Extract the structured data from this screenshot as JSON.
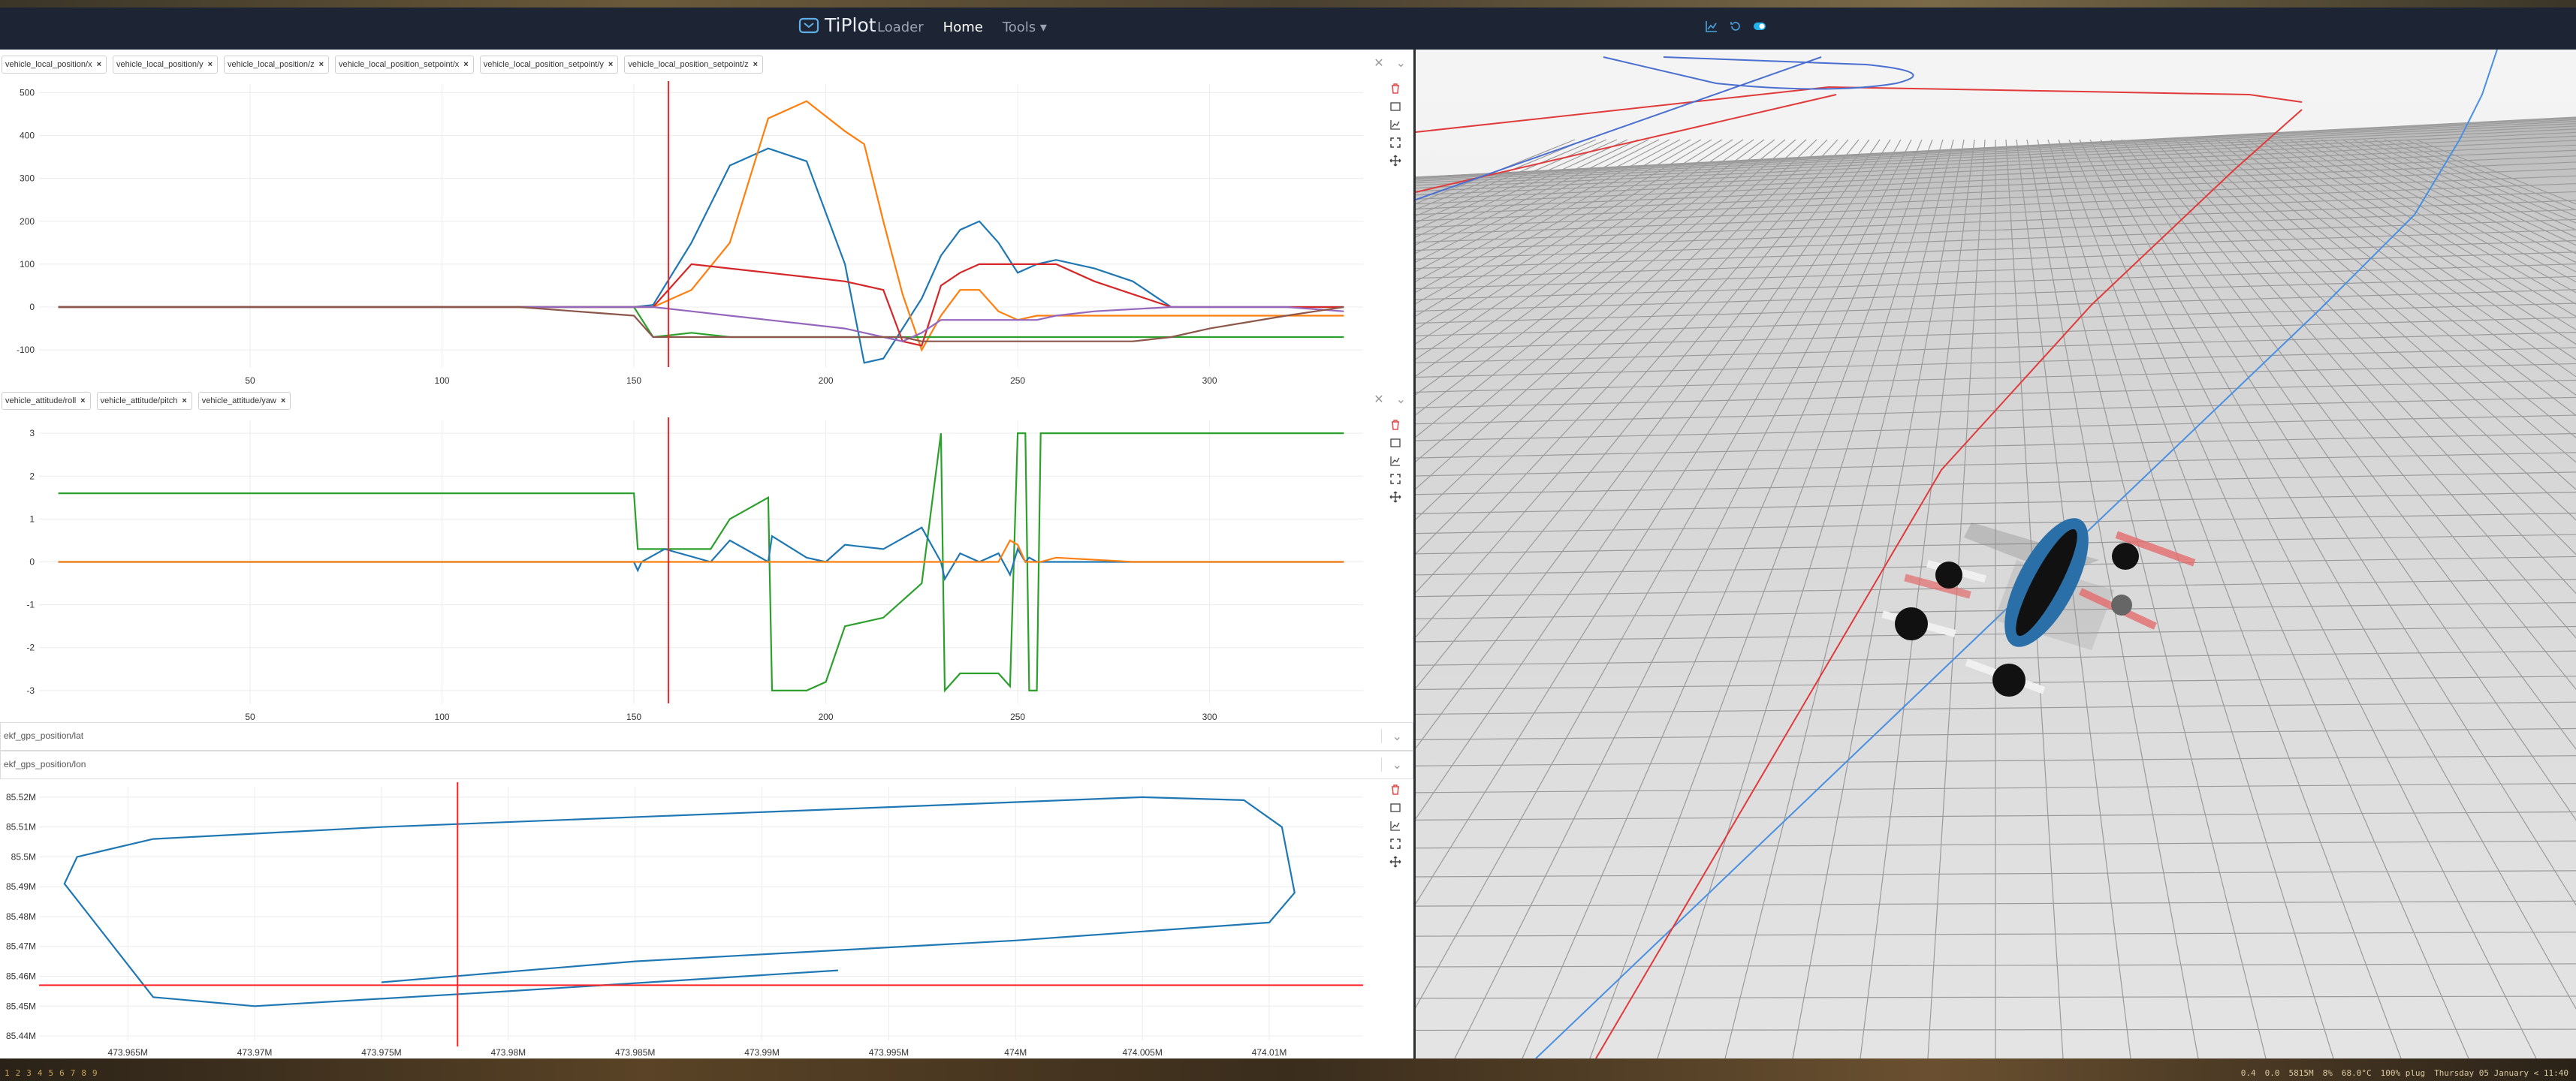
{
  "navbar": {
    "brand": "TiPlot",
    "links": [
      {
        "label": "Loader",
        "active": false
      },
      {
        "label": "Home",
        "active": true
      },
      {
        "label": "Tools ▾",
        "active": false
      }
    ]
  },
  "plots": [
    {
      "tags": [
        "vehicle_local_position/x",
        "vehicle_local_position/y",
        "vehicle_local_position/z",
        "vehicle_local_position_setpoint/x",
        "vehicle_local_position_setpoint/y",
        "vehicle_local_position_setpoint/z"
      ],
      "y_ticks": [
        "500",
        "400",
        "300",
        "200",
        "100",
        "0",
        "-100"
      ],
      "x_ticks": [
        "50",
        "100",
        "150",
        "200",
        "250",
        "300"
      ]
    },
    {
      "tags": [
        "vehicle_attitude/roll",
        "vehicle_attitude/pitch",
        "vehicle_attitude/yaw"
      ],
      "y_ticks": [
        "3",
        "2",
        "1",
        "0",
        "-1",
        "-2",
        "-3"
      ],
      "x_ticks": [
        "50",
        "100",
        "150",
        "200",
        "250",
        "300"
      ]
    },
    {
      "select_x": "ekf_gps_position/lat",
      "select_y": "ekf_gps_position/lon",
      "y_ticks": [
        "85.52M",
        "85.51M",
        "85.5M",
        "85.49M",
        "85.48M",
        "85.47M",
        "85.46M",
        "85.45M",
        "85.44M"
      ],
      "x_ticks": [
        "473.965M",
        "473.97M",
        "473.975M",
        "473.98M",
        "473.985M",
        "473.99M",
        "473.995M",
        "474M",
        "474.005M",
        "474.01M"
      ]
    }
  ],
  "chart_data": [
    {
      "type": "line",
      "x": [
        0,
        120,
        150,
        155,
        165,
        175,
        185,
        195,
        205,
        210,
        215,
        220,
        225,
        230,
        235,
        240,
        245,
        250,
        255,
        260,
        270,
        280,
        290,
        300,
        320,
        335
      ],
      "ylim": [
        -140,
        520
      ],
      "xlim": [
        -5,
        340
      ],
      "series": [
        {
          "color": "#1f77b4",
          "values": [
            0,
            0,
            0,
            5,
            150,
            330,
            370,
            340,
            100,
            -130,
            -120,
            -50,
            20,
            120,
            180,
            200,
            150,
            80,
            100,
            110,
            90,
            60,
            0,
            0,
            0,
            0
          ]
        },
        {
          "color": "#ff7f0e",
          "values": [
            0,
            0,
            0,
            0,
            40,
            150,
            440,
            480,
            410,
            380,
            200,
            30,
            -100,
            -20,
            40,
            40,
            -10,
            -30,
            -20,
            -20,
            -20,
            -20,
            -20,
            -20,
            -20,
            -20
          ]
        },
        {
          "color": "#2ca02c",
          "values": [
            0,
            0,
            0,
            -70,
            -60,
            -70,
            -70,
            -70,
            -70,
            -70,
            -70,
            -70,
            -70,
            -70,
            -70,
            -70,
            -70,
            -70,
            -70,
            -70,
            -70,
            -70,
            -70,
            -70,
            -70,
            -70
          ]
        },
        {
          "color": "#d62728",
          "values": [
            0,
            0,
            0,
            0,
            100,
            90,
            80,
            70,
            60,
            50,
            40,
            -80,
            -90,
            50,
            80,
            100,
            100,
            100,
            100,
            100,
            60,
            30,
            0,
            0,
            0,
            0
          ]
        },
        {
          "color": "#9467bd",
          "values": [
            0,
            0,
            0,
            0,
            -10,
            -20,
            -30,
            -40,
            -50,
            -60,
            -70,
            -80,
            -60,
            -30,
            -30,
            -30,
            -30,
            -30,
            -30,
            -20,
            -10,
            -5,
            0,
            0,
            0,
            -10
          ]
        },
        {
          "color": "#8c564b",
          "values": [
            0,
            0,
            -20,
            -70,
            -70,
            -70,
            -70,
            -70,
            -70,
            -70,
            -70,
            -70,
            -80,
            -80,
            -80,
            -80,
            -80,
            -80,
            -80,
            -80,
            -80,
            -80,
            -70,
            -50,
            -20,
            0
          ]
        }
      ],
      "cursor_x": 159
    },
    {
      "type": "line",
      "x": [
        0,
        150,
        151,
        152,
        158,
        170,
        175,
        185,
        186,
        195,
        200,
        205,
        215,
        225,
        230,
        231,
        235,
        240,
        245,
        248,
        250,
        252,
        253,
        255,
        256,
        260,
        280,
        300,
        335
      ],
      "ylim": [
        -3.3,
        3.3
      ],
      "xlim": [
        -5,
        340
      ],
      "series": [
        {
          "color": "#2ca02c",
          "values": [
            1.6,
            1.6,
            0.3,
            0.3,
            0.3,
            0.3,
            1,
            1.5,
            -3,
            -3,
            -2.8,
            -1.5,
            -1.3,
            -0.5,
            3,
            -3,
            -2.6,
            -2.6,
            -2.6,
            -2.9,
            3,
            3,
            -3,
            -3,
            3,
            3,
            3,
            3,
            3
          ]
        },
        {
          "color": "#1f77b4",
          "values": [
            0,
            0,
            -0.2,
            0,
            0.3,
            0,
            0.5,
            0,
            0.6,
            0.1,
            0,
            0.4,
            0.3,
            0.8,
            0,
            -0.4,
            0.2,
            0,
            0.2,
            -0.3,
            0.3,
            0,
            0.1,
            0,
            0,
            0,
            0,
            0,
            0
          ]
        },
        {
          "color": "#ff7f0e",
          "values": [
            0,
            0,
            0,
            0,
            0,
            0,
            0,
            0,
            0,
            0,
            0,
            0,
            0,
            0,
            0,
            0,
            0,
            0,
            0,
            0.5,
            0.4,
            0,
            0,
            0,
            0,
            0.1,
            0,
            0,
            0
          ]
        }
      ],
      "cursor_x": 159
    },
    {
      "type": "line",
      "x_label_unit": "M",
      "xlim": [
        473.9615,
        474.0137
      ],
      "ylim": [
        85.4385,
        85.5235
      ],
      "series": [
        {
          "color": "#1f77b4",
          "x": [
            473.993,
            473.98,
            473.97,
            473.966,
            473.9625,
            473.963,
            473.966,
            473.975,
            473.99,
            474.005,
            474.009,
            474.0105,
            474.011,
            474.01,
            474.0,
            473.985,
            473.975
          ],
          "y": [
            85.462,
            85.455,
            85.45,
            85.453,
            85.491,
            85.5,
            85.506,
            85.51,
            85.515,
            85.52,
            85.519,
            85.51,
            85.488,
            85.478,
            85.472,
            85.465,
            85.458
          ]
        }
      ],
      "cursor_x": 473.978,
      "cursor_y": 85.457
    }
  ],
  "statusbar": {
    "workspaces": [
      "1",
      "2",
      "3",
      "4",
      "5",
      "6",
      "7",
      "8",
      "9"
    ],
    "info": [
      "0.4",
      "0.0",
      "5815M",
      "8%",
      "68.0°C",
      "100% plug",
      "Thursday 05 January < 11:40"
    ]
  }
}
